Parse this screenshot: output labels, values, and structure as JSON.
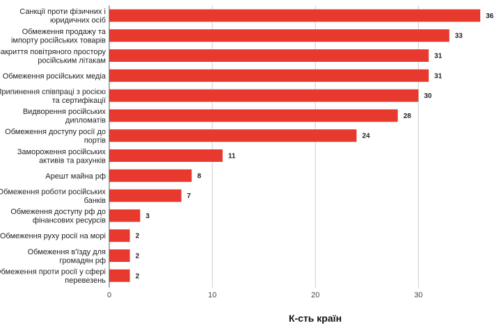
{
  "chart_data": {
    "type": "bar",
    "orientation": "horizontal",
    "categories": [
      [
        "Санкції проти фізичних і",
        "юридичних осіб"
      ],
      [
        "Обмеження продажу та",
        "імпорту російських товарів"
      ],
      [
        "Закриття повітряного простору",
        "російським літакам"
      ],
      [
        "Обмеження російських медіа"
      ],
      [
        "Припинення співпраці з росією",
        "та сертифікації"
      ],
      [
        "Видворення російських",
        "дипломатів"
      ],
      [
        "Обмеження доступу росії до",
        "портів"
      ],
      [
        "Замороження російських",
        "активів та рахунків"
      ],
      [
        "Арешт майна рф"
      ],
      [
        "Обмеження роботи російських",
        "банків"
      ],
      [
        "Обмеження доступу рф до",
        "фінансових ресурсів"
      ],
      [
        "Обмеження руху росії на морі"
      ],
      [
        "Обмеження в'їзду для",
        "громадян рф"
      ],
      [
        "Обмеження проти росії у сфері",
        "перевезень"
      ]
    ],
    "values": [
      36,
      33,
      31,
      31,
      30,
      28,
      24,
      11,
      8,
      7,
      3,
      2,
      2,
      2
    ],
    "value_labels": [
      "36",
      "33",
      "31",
      "31",
      "30",
      "28",
      "24",
      "11",
      "8",
      "7",
      "3",
      "2",
      "2",
      "2"
    ],
    "xlim": [
      0,
      37
    ],
    "xticks": [
      0,
      10,
      20,
      30
    ],
    "xtick_labels": [
      "0",
      "10",
      "20",
      "30"
    ],
    "xlabel": "К-сть країн",
    "ylabel": "",
    "title": "",
    "grid": "vertical",
    "legend": "none",
    "bar_color": "#e8392f",
    "grid_color": "#cccccc",
    "axis_color": "#555555"
  }
}
